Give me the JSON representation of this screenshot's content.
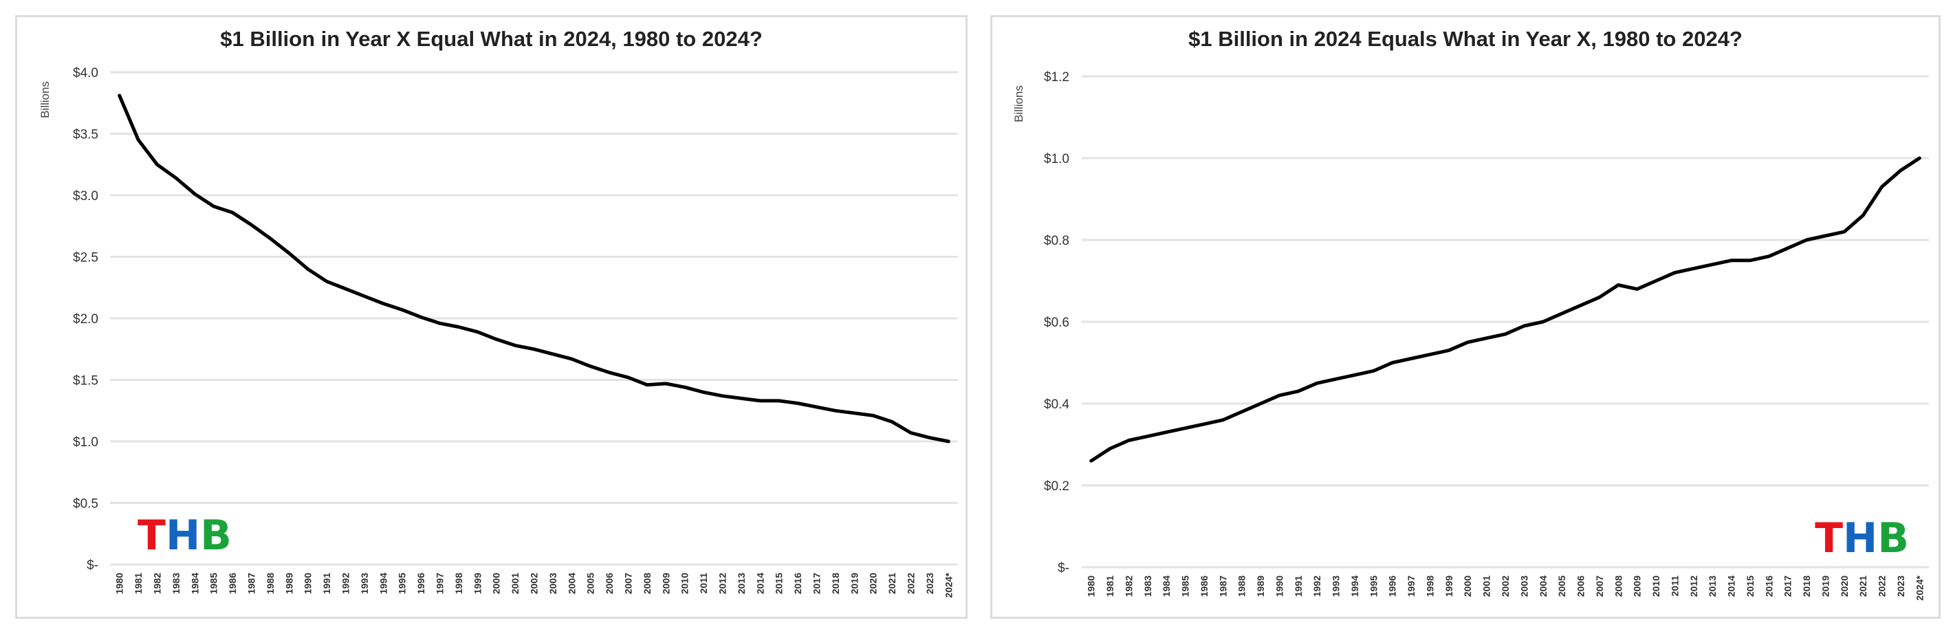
{
  "chart_data": [
    {
      "type": "line",
      "title": "$1 Billion in Year X Equal What in 2024, 1980 to 2024?",
      "xlabel": "",
      "ylabel": "Billions",
      "ylim": [
        0,
        4.0
      ],
      "yticks": [
        0,
        0.5,
        1.0,
        1.5,
        2.0,
        2.5,
        3.0,
        3.5,
        4.0
      ],
      "ytick_labels": [
        "$-",
        "$0.5",
        "$1.0",
        "$1.5",
        "$2.0",
        "$2.5",
        "$3.0",
        "$3.5",
        "$4.0"
      ],
      "grid": true,
      "logo": "THB",
      "logo_position": "bottom-left",
      "categories": [
        "1980",
        "1981",
        "1982",
        "1983",
        "1984",
        "1985",
        "1986",
        "1987",
        "1988",
        "1989",
        "1990",
        "1991",
        "1992",
        "1993",
        "1994",
        "1995",
        "1996",
        "1997",
        "1998",
        "1999",
        "2000",
        "2001",
        "2002",
        "2003",
        "2004",
        "2005",
        "2006",
        "2007",
        "2008",
        "2009",
        "2010",
        "2011",
        "2012",
        "2013",
        "2014",
        "2015",
        "2016",
        "2017",
        "2018",
        "2019",
        "2020",
        "2021",
        "2022",
        "2023",
        "2024*"
      ],
      "values": [
        3.81,
        3.45,
        3.25,
        3.14,
        3.01,
        2.91,
        2.86,
        2.76,
        2.65,
        2.53,
        2.4,
        2.3,
        2.24,
        2.18,
        2.12,
        2.07,
        2.01,
        1.96,
        1.93,
        1.89,
        1.83,
        1.78,
        1.75,
        1.71,
        1.67,
        1.61,
        1.56,
        1.52,
        1.46,
        1.47,
        1.44,
        1.4,
        1.37,
        1.35,
        1.33,
        1.33,
        1.31,
        1.28,
        1.25,
        1.23,
        1.21,
        1.16,
        1.07,
        1.03,
        1.0
      ]
    },
    {
      "type": "line",
      "title": "$1 Billion in 2024 Equals What in Year X, 1980 to 2024?",
      "xlabel": "",
      "ylabel": "Billions",
      "ylim": [
        0,
        1.2
      ],
      "yticks": [
        0,
        0.2,
        0.4,
        0.6,
        0.8,
        1.0,
        1.2
      ],
      "ytick_labels": [
        "$-",
        "$0.2",
        "$0.4",
        "$0.6",
        "$0.8",
        "$1.0",
        "$1.2"
      ],
      "grid": true,
      "logo": "THB",
      "logo_position": "bottom-right",
      "categories": [
        "1980",
        "1981",
        "1982",
        "1983",
        "1984",
        "1985",
        "1986",
        "1987",
        "1988",
        "1989",
        "1990",
        "1991",
        "1992",
        "1993",
        "1994",
        "1995",
        "1996",
        "1997",
        "1998",
        "1999",
        "2000",
        "2001",
        "2002",
        "2003",
        "2004",
        "2005",
        "2006",
        "2007",
        "2008",
        "2009",
        "2010",
        "2011",
        "2012",
        "2013",
        "2014",
        "2015",
        "2016",
        "2017",
        "2018",
        "2019",
        "2020",
        "2021",
        "2022",
        "2023",
        "2024*"
      ],
      "values": [
        0.26,
        0.29,
        0.31,
        0.32,
        0.33,
        0.34,
        0.35,
        0.36,
        0.38,
        0.4,
        0.42,
        0.43,
        0.45,
        0.46,
        0.47,
        0.48,
        0.5,
        0.51,
        0.52,
        0.53,
        0.55,
        0.56,
        0.57,
        0.59,
        0.6,
        0.62,
        0.64,
        0.66,
        0.69,
        0.68,
        0.7,
        0.72,
        0.73,
        0.74,
        0.75,
        0.75,
        0.76,
        0.78,
        0.8,
        0.81,
        0.82,
        0.86,
        0.93,
        0.97,
        1.0
      ]
    }
  ],
  "colors": {
    "line": "#000000",
    "grid": "#e3e3e3",
    "logo_t": "#e8141c",
    "logo_h": "#1565c0",
    "logo_b": "#1aa33a"
  }
}
